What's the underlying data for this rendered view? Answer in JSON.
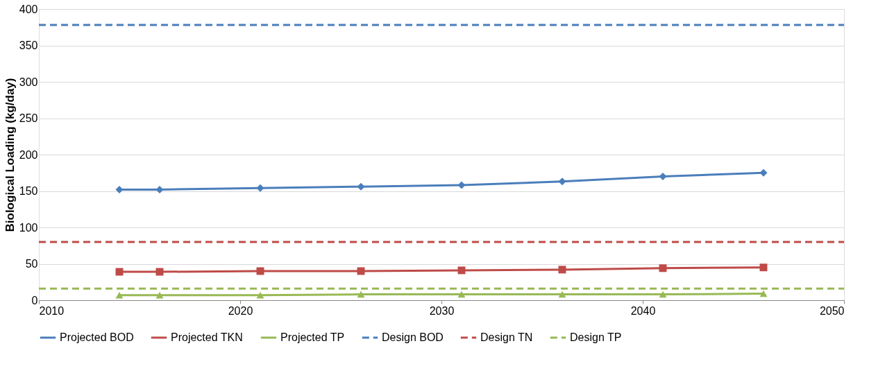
{
  "chart_data": {
    "type": "line",
    "ylabel": "Biological Loading (kg/day)",
    "xlim": [
      2010,
      2050
    ],
    "xticks": [
      2010,
      2020,
      2030,
      2040,
      2050
    ],
    "ylim": [
      0,
      400
    ],
    "yticks": [
      0,
      50,
      100,
      150,
      200,
      250,
      300,
      350,
      400
    ],
    "grid": "y",
    "legend": "bottom",
    "series": [
      {
        "name": "Projected BOD",
        "color": "#4a7ebb",
        "marker": "diamond",
        "line_style": "solid",
        "x": [
          2014,
          2016,
          2021,
          2026,
          2031,
          2036,
          2041,
          2046
        ],
        "values": [
          152,
          152,
          154,
          156,
          158,
          163,
          170,
          175
        ]
      },
      {
        "name": "Projected TKN",
        "color": "#be4b48",
        "marker": "square",
        "line_style": "solid",
        "x": [
          2014,
          2016,
          2021,
          2026,
          2031,
          2036,
          2041,
          2046
        ],
        "values": [
          39,
          39,
          40,
          40,
          41,
          42,
          44,
          45
        ]
      },
      {
        "name": "Projected TP",
        "color": "#98b954",
        "marker": "triangle",
        "line_style": "solid",
        "x": [
          2014,
          2016,
          2021,
          2026,
          2031,
          2036,
          2041,
          2046
        ],
        "values": [
          7,
          7,
          7,
          8,
          8,
          8,
          8,
          9
        ]
      },
      {
        "name": "Design BOD",
        "color": "#4a7ebb",
        "marker": "none",
        "line_style": "dashed",
        "x": [
          2010,
          2050
        ],
        "values": [
          378,
          378
        ]
      },
      {
        "name": "Design TN",
        "color": "#be4b48",
        "marker": "none",
        "line_style": "dashed",
        "x": [
          2010,
          2050
        ],
        "values": [
          80,
          80
        ]
      },
      {
        "name": "Design TP",
        "color": "#98b954",
        "marker": "none",
        "line_style": "dashed",
        "x": [
          2010,
          2050
        ],
        "values": [
          16,
          16
        ]
      }
    ]
  }
}
